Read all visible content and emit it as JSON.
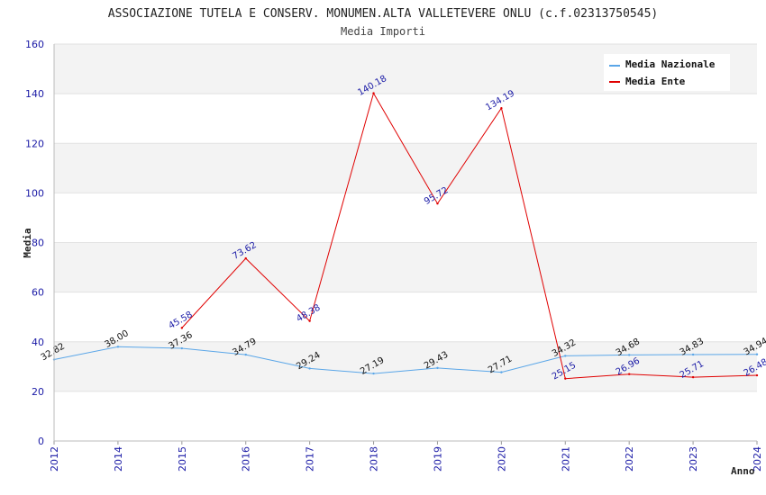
{
  "chart_data": {
    "type": "line",
    "title": "ASSOCIAZIONE TUTELA E CONSERV. MONUMEN.ALTA VALLETEVERE ONLU (c.f.02313750545)",
    "subtitle": "Media Importi",
    "xlabel": "Anno",
    "ylabel": "Media",
    "ylim": [
      0,
      160
    ],
    "yticks": [
      "0",
      "20",
      "40",
      "60",
      "80",
      "100",
      "120",
      "140",
      "160"
    ],
    "categories": [
      "2012",
      "2014",
      "2015",
      "2016",
      "2017",
      "2018",
      "2019",
      "2020",
      "2021",
      "2022",
      "2023",
      "2024"
    ],
    "legend_position": "top-right",
    "series": [
      {
        "name": "Media Nazionale",
        "color": "#5aa6e8",
        "values": [
          32.82,
          38.0,
          37.36,
          34.79,
          29.24,
          27.19,
          29.43,
          27.71,
          34.32,
          34.68,
          34.83,
          34.94
        ],
        "labels": [
          "32.82",
          "38.00",
          "37.36",
          "34.79",
          "29.24",
          "27.19",
          "29.43",
          "27.71",
          "34.32",
          "34.68",
          "34.83",
          "34.94"
        ]
      },
      {
        "name": "Media Ente",
        "color": "#e00000",
        "values": [
          null,
          null,
          45.58,
          73.62,
          48.38,
          140.18,
          95.72,
          134.19,
          25.15,
          26.96,
          25.71,
          26.48
        ],
        "labels": [
          null,
          null,
          "45.58",
          "73.62",
          "48.38",
          "140.18",
          "95.72",
          "134.19",
          "25.15",
          "26.96",
          "25.71",
          "26.48"
        ]
      }
    ]
  }
}
